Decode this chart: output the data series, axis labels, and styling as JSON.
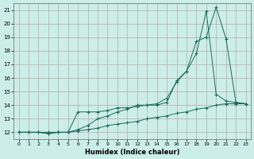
{
  "xlabel": "Humidex (Indice chaleur)",
  "bg_color": "#cceee8",
  "grid_color": "#b8a8a8",
  "line_color": "#1a6b5a",
  "xlim": [
    -0.5,
    23.5
  ],
  "ylim": [
    11.5,
    21.5
  ],
  "xticks": [
    0,
    1,
    2,
    3,
    4,
    5,
    6,
    7,
    8,
    9,
    10,
    11,
    12,
    13,
    14,
    15,
    16,
    17,
    18,
    19,
    20,
    21,
    22,
    23
  ],
  "yticks": [
    12,
    13,
    14,
    15,
    16,
    17,
    18,
    19,
    20,
    21
  ],
  "line1_x": [
    0,
    1,
    2,
    3,
    4,
    5,
    6,
    7,
    8,
    9,
    10,
    11,
    12,
    13,
    14,
    15,
    16,
    17,
    18,
    19,
    20,
    21,
    22,
    23
  ],
  "line1_y": [
    12.0,
    12.0,
    12.0,
    12.0,
    12.0,
    12.0,
    12.1,
    12.2,
    12.3,
    12.5,
    12.6,
    12.7,
    12.8,
    13.0,
    13.1,
    13.2,
    13.4,
    13.5,
    13.7,
    13.8,
    14.0,
    14.1,
    14.1,
    14.1
  ],
  "line2_x": [
    0,
    1,
    2,
    3,
    4,
    5,
    6,
    7,
    8,
    9,
    10,
    11,
    12,
    13,
    14,
    15,
    16,
    17,
    18,
    19,
    20,
    21,
    22,
    23
  ],
  "line2_y": [
    12.0,
    12.0,
    12.0,
    11.9,
    12.0,
    12.0,
    13.5,
    13.5,
    13.5,
    13.6,
    13.8,
    13.8,
    13.9,
    14.0,
    14.0,
    14.2,
    15.8,
    16.5,
    17.8,
    20.9,
    14.8,
    14.3,
    14.2,
    14.1
  ],
  "line3_x": [
    0,
    1,
    2,
    3,
    4,
    5,
    6,
    7,
    8,
    9,
    10,
    11,
    12,
    13,
    14,
    15,
    16,
    17,
    18,
    19,
    20,
    21,
    22,
    23
  ],
  "line3_y": [
    12.0,
    12.0,
    12.0,
    11.9,
    12.0,
    12.0,
    12.2,
    12.5,
    13.0,
    13.2,
    13.5,
    13.7,
    14.0,
    14.0,
    14.1,
    14.5,
    15.7,
    16.5,
    18.7,
    19.0,
    21.2,
    18.9,
    14.2,
    14.1
  ]
}
